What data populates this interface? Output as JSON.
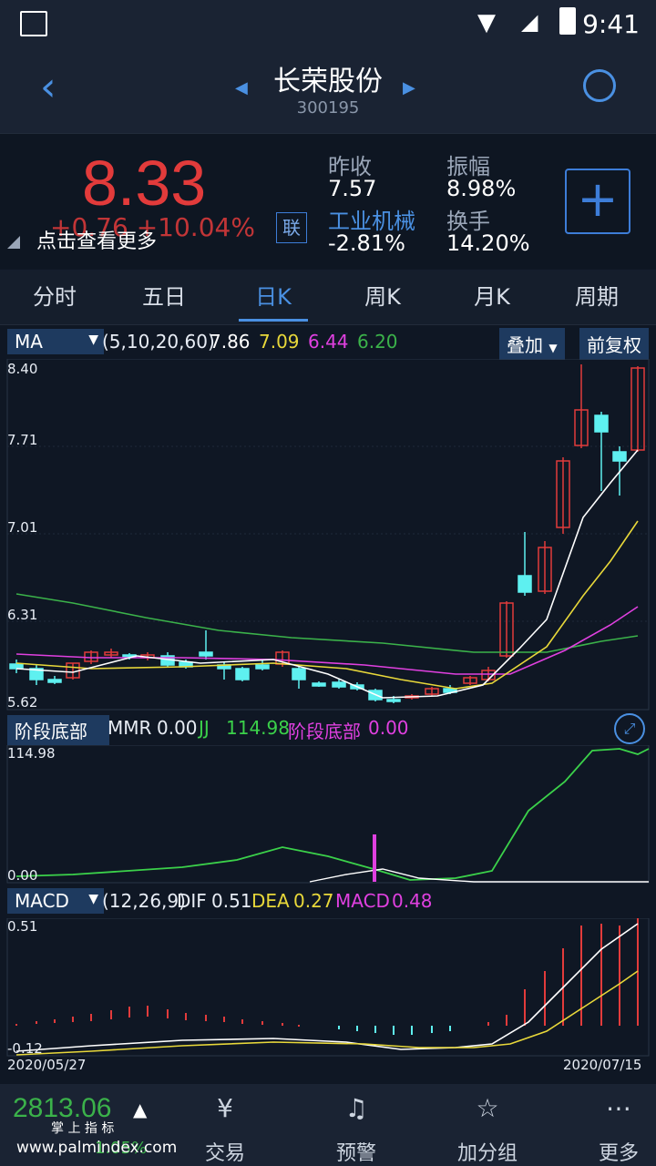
{
  "status": {
    "time": "9:41"
  },
  "header": {
    "title": "长荣股份",
    "code": "300195"
  },
  "quote": {
    "price": "8.33",
    "change": "+0.76  +10.04%",
    "hint": "点击查看更多",
    "lian": "联",
    "stats": [
      {
        "label": "昨收",
        "value": "7.57"
      },
      {
        "label": "振幅",
        "value": "8.98%"
      },
      {
        "label": "工业机械",
        "value": "-2.81%"
      },
      {
        "label": "换手",
        "value": "14.20%"
      }
    ],
    "plus": "+"
  },
  "tabs": [
    "分时",
    "五日",
    "日K",
    "周K",
    "月K",
    "周期"
  ],
  "ma_bar": {
    "selector": "MA",
    "params": "(5,10,20,60)",
    "v1": "7.86",
    "v2": "7.09",
    "v3": "6.44",
    "v4": "6.20",
    "btn_overlay": "叠加",
    "btn_adjust": "前复权"
  },
  "ma_axis": [
    "8.40",
    "7.71",
    "7.01",
    "6.31",
    "5.62"
  ],
  "mmr_bar": {
    "selector": "阶段底部",
    "mmr_label": "MMR",
    "mmr_value": "0.00",
    "jj_label": "JJ",
    "jj_value": "114.98",
    "stage_label": "阶段底部",
    "stage_value": "0.00"
  },
  "mmr_axis": [
    "114.98",
    "0.00"
  ],
  "macd_bar": {
    "selector": "MACD",
    "params": "(12,26,9)",
    "dif_label": "DIF",
    "dif_value": "0.51",
    "dea_label": "DEA",
    "dea_value": "0.27",
    "macd_label": "MACD",
    "macd_value": "0.48"
  },
  "macd_axis": [
    "0.51",
    "-0.12"
  ],
  "dates": {
    "start": "2020/05/27",
    "end": "2020/07/15"
  },
  "bottom_nav": {
    "index_value": "2813.06",
    "index_sub": "1.05%",
    "watermark": "www.palmindex.com",
    "watermark_top": "掌 上 指 标",
    "items": [
      "交易",
      "预警",
      "加分组",
      "更多"
    ]
  },
  "colors": {
    "up": "#e23b3b",
    "down": "#5ef0f0",
    "ma5": "#ffffff",
    "ma10": "#e8d83a",
    "ma20": "#e040e0",
    "ma60": "#3bb24a",
    "accent": "#4a90e2"
  }
}
